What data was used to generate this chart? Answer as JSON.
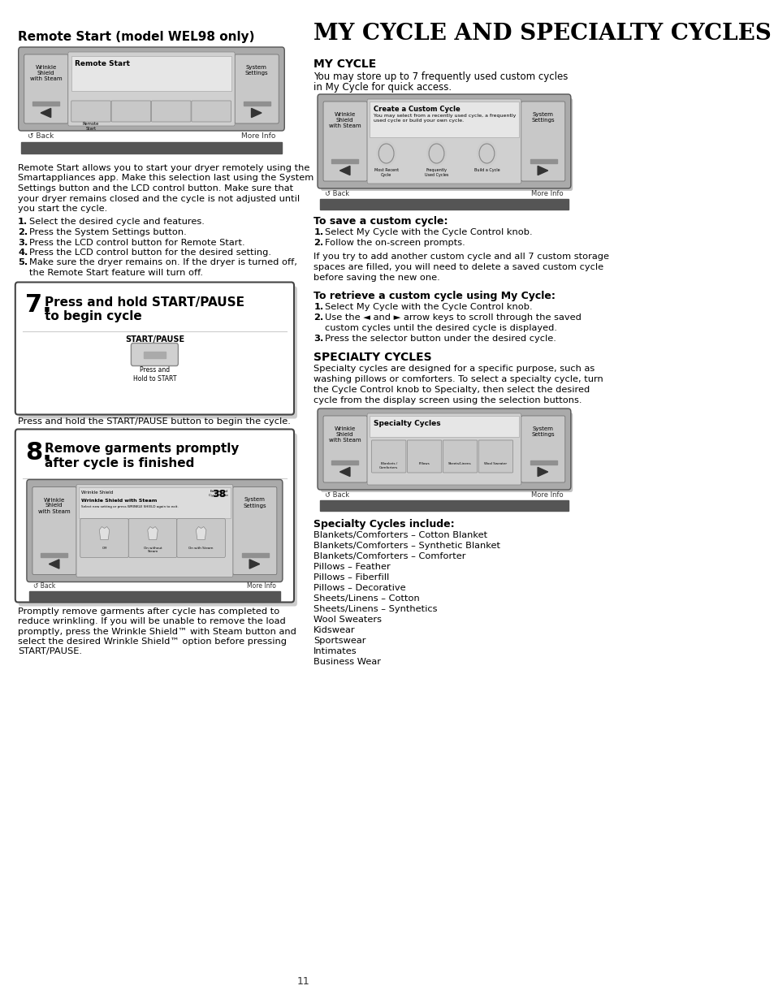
{
  "page_number": "11",
  "bg_color": "#ffffff",
  "left_section": {
    "heading": "Remote Start (model WEL98 only)",
    "body_text": "Remote Start allows you to start your dryer remotely using the\nSmartappliances app. Make this selection last using the System\nSettings button and the LCD control button. Make sure that\nyour dryer remains closed and the cycle is not adjusted until\nyou start the cycle.",
    "steps": [
      {
        "num": "1.",
        "text": "Select the desired cycle and features."
      },
      {
        "num": "2.",
        "text": "Press the System Settings button."
      },
      {
        "num": "3.",
        "text": "Press the LCD control button for Remote Start."
      },
      {
        "num": "4.",
        "text": "Press the LCD control button for the desired setting."
      },
      {
        "num": "5.",
        "text": "Make sure the dryer remains on. If the dryer is turned off,\n    the Remote Start feature will turn off."
      }
    ],
    "box7_caption": "Press and hold the START/PAUSE button to begin the cycle.",
    "box8_caption": "Promptly remove garments after cycle has completed to\nreduce wrinkling. If you will be unable to remove the load\npromptly, press the Wrinkle Shield™ with Steam button and\nselect the desired Wrinkle Shield™ option before pressing\nSTART/PAUSE."
  },
  "right_section": {
    "main_heading": "MY CYCLE AND SPECIALTY CYCLES",
    "section1_heading": "MY CYCLE",
    "section1_body": "You may store up to 7 frequently used custom cycles\nin My Cycle for quick access.",
    "save_heading": "To save a custom cycle:",
    "save_steps": [
      {
        "num": "1.",
        "text": "Select My Cycle with the Cycle Control knob."
      },
      {
        "num": "2.",
        "text": "Follow the on-screen prompts."
      }
    ],
    "save_para": "If you try to add another custom cycle and all 7 custom storage\nspaces are filled, you will need to delete a saved custom cycle\nbefore saving the new one.",
    "retrieve_heading": "To retrieve a custom cycle using My Cycle:",
    "retrieve_steps": [
      {
        "num": "1.",
        "text": "Select My Cycle with the Cycle Control knob."
      },
      {
        "num": "2.",
        "text": "Use the ◄ and ► arrow keys to scroll through the saved\n    custom cycles until the desired cycle is displayed."
      },
      {
        "num": "3.",
        "text": "Press the selector button under the desired cycle."
      }
    ],
    "section2_heading": "SPECIALTY CYCLES",
    "section2_body": "Specialty cycles are designed for a specific purpose, such as\nwashing pillows or comforters. To select a specialty cycle, turn\nthe Cycle Control knob to Specialty, then select the desired\ncycle from the display screen using the selection buttons.",
    "specialty_list_heading": "Specialty Cycles include:",
    "specialty_list": [
      "Blankets/Comforters – Cotton Blanket",
      "Blankets/Comforters – Synthetic Blanket",
      "Blankets/Comforters – Comforter",
      "Pillows – Feather",
      "Pillows – Fiberfill",
      "Pillows – Decorative",
      "Sheets/Linens – Cotton",
      "Sheets/Linens – Synthetics",
      "Wool Sweaters",
      "Kidswear",
      "Sportswear",
      "Intimates",
      "Business Wear"
    ]
  }
}
